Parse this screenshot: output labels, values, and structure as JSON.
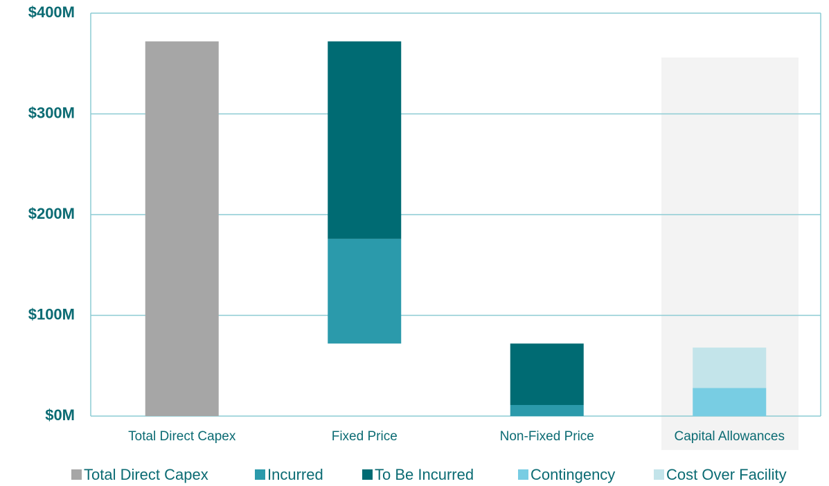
{
  "chart_data": {
    "type": "waterfall",
    "categories": [
      "Total Direct Capex",
      "Fixed Price",
      "Non-Fixed Price",
      "Capital Allowances"
    ],
    "series": [
      {
        "name": "Total Direct Capex",
        "color": "#a6a6a6",
        "values": [
          372,
          null,
          null,
          null
        ]
      },
      {
        "name": "Incurred",
        "color": "#2b9aab",
        "values": [
          null,
          104,
          11,
          null
        ]
      },
      {
        "name": "To Be Incurred",
        "color": "#006b73",
        "values": [
          null,
          196,
          61,
          null
        ]
      },
      {
        "name": "Contingency",
        "color": "#78cde3",
        "values": [
          null,
          null,
          null,
          28
        ]
      },
      {
        "name": "Cost Over Facility",
        "color": "#c3e4ea",
        "values": [
          null,
          null,
          null,
          40
        ]
      }
    ],
    "ylim": [
      0,
      400
    ],
    "yticks": [
      {
        "value": 0,
        "label": "$0M"
      },
      {
        "value": 100,
        "label": "$100M"
      },
      {
        "value": 200,
        "label": "$200M"
      },
      {
        "value": 300,
        "label": "$300M"
      },
      {
        "value": 400,
        "label": "$400M"
      }
    ],
    "grid": true
  }
}
